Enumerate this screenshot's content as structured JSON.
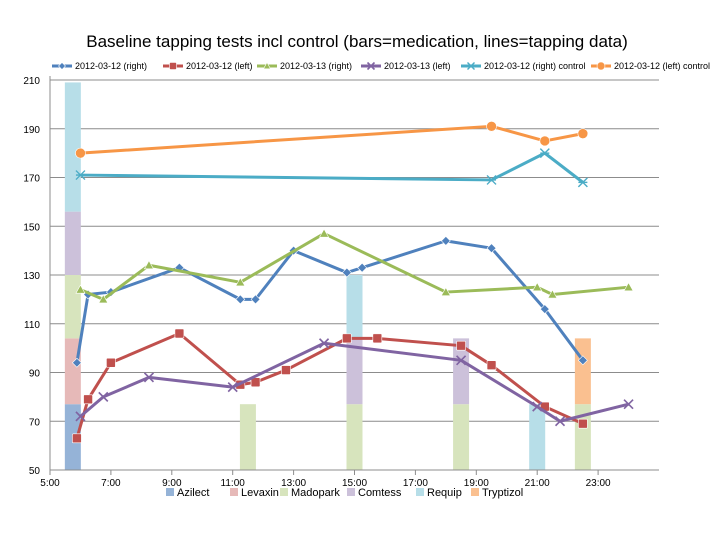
{
  "chart_data": {
    "type": "line",
    "title": "Baseline tapping tests incl control (bars=medication, lines=tapping data)",
    "xlabel": "",
    "ylabel": "",
    "xlim": [
      "05:00",
      "25:00"
    ],
    "ylim": [
      50,
      210
    ],
    "y_ticks": [
      50,
      70,
      90,
      110,
      130,
      150,
      170,
      190,
      210
    ],
    "x_ticks": [
      "5:00",
      "7:00",
      "9:00",
      "11:00",
      "13:00",
      "15:00",
      "17:00",
      "19:00",
      "21:00",
      "23:00"
    ],
    "grid": "horizontal",
    "line_legend_position": "top",
    "bar_legend_position": "bottom",
    "series": [
      {
        "name": "2012-03-12 (right)",
        "color": "#4F81BD",
        "marker": "diamond",
        "x": [
          "05:53",
          "06:15",
          "07:00",
          "09:15",
          "11:15",
          "11:45",
          "13:00",
          "14:45",
          "15:15",
          "18:00",
          "19:30",
          "21:15",
          "22:30"
        ],
        "y": [
          94,
          122,
          123,
          133,
          120,
          120,
          140,
          131,
          133,
          144,
          141,
          116,
          95
        ]
      },
      {
        "name": "2012-03-12 (left)",
        "color": "#C0504D",
        "marker": "square",
        "x": [
          "05:53",
          "06:15",
          "07:00",
          "09:15",
          "11:15",
          "11:45",
          "12:45",
          "14:45",
          "15:45",
          "18:30",
          "19:30",
          "21:15",
          "22:30"
        ],
        "y": [
          63,
          79,
          94,
          106,
          85,
          86,
          91,
          104,
          104,
          101,
          93,
          76,
          69
        ]
      },
      {
        "name": "2012-03-13 (right)",
        "color": "#9BBB59",
        "marker": "triangle",
        "x": [
          "06:00",
          "06:45",
          "08:15",
          "11:15",
          "14:00",
          "18:00",
          "21:00",
          "21:30",
          "24:00"
        ],
        "y": [
          124,
          120,
          134,
          127,
          147,
          123,
          125,
          122,
          125
        ]
      },
      {
        "name": "2012-03-13 (left)",
        "color": "#8064A2",
        "marker": "x",
        "x": [
          "06:00",
          "06:45",
          "08:15",
          "11:00",
          "14:00",
          "18:30",
          "21:00",
          "21:45",
          "24:00"
        ],
        "y": [
          72,
          80,
          88,
          84,
          102,
          95,
          76,
          70,
          77
        ]
      },
      {
        "name": "2012-03-12 (right) control",
        "color": "#4BACC6",
        "marker": "star",
        "x": [
          "06:00",
          "19:30",
          "21:15",
          "22:30"
        ],
        "y": [
          171,
          169,
          180,
          168
        ]
      },
      {
        "name": "2012-03-12 (left) control",
        "color": "#F79646",
        "marker": "circle",
        "x": [
          "06:00",
          "19:30",
          "21:15",
          "22:30"
        ],
        "y": [
          180,
          191,
          185,
          188
        ]
      }
    ],
    "medication_series": [
      {
        "name": "Azilect",
        "color": "#95B3D7"
      },
      {
        "name": "Levaxin",
        "color": "#E6B9B8"
      },
      {
        "name": "Madopark",
        "color": "#D7E4BD"
      },
      {
        "name": "Comtess",
        "color": "#CCC1DA"
      },
      {
        "name": "Requip",
        "color": "#B7DEE8"
      },
      {
        "name": "Tryptizol",
        "color": "#FAC090"
      }
    ],
    "medication_bars": [
      {
        "x": "05:45",
        "stack": [
          {
            "med": "Azilect",
            "from": 50,
            "to": 77
          },
          {
            "med": "Levaxin",
            "from": 77,
            "to": 104
          },
          {
            "med": "Madopark",
            "from": 104,
            "to": 130
          },
          {
            "med": "Comtess",
            "from": 130,
            "to": 156
          },
          {
            "med": "Requip",
            "from": 156,
            "to": 209
          }
        ]
      },
      {
        "x": "11:30",
        "stack": [
          {
            "med": "Madopark",
            "from": 50,
            "to": 77
          }
        ]
      },
      {
        "x": "15:00",
        "stack": [
          {
            "med": "Madopark",
            "from": 50,
            "to": 77
          },
          {
            "med": "Comtess",
            "from": 77,
            "to": 104
          },
          {
            "med": "Requip",
            "from": 104,
            "to": 130
          }
        ]
      },
      {
        "x": "18:30",
        "stack": [
          {
            "med": "Madopark",
            "from": 50,
            "to": 77
          },
          {
            "med": "Comtess",
            "from": 77,
            "to": 104
          }
        ]
      },
      {
        "x": "21:00",
        "stack": [
          {
            "med": "Requip",
            "from": 50,
            "to": 77
          }
        ]
      },
      {
        "x": "22:30",
        "stack": [
          {
            "med": "Madopark",
            "from": 50,
            "to": 77
          },
          {
            "med": "Tryptizol",
            "from": 77,
            "to": 104
          }
        ]
      }
    ]
  }
}
